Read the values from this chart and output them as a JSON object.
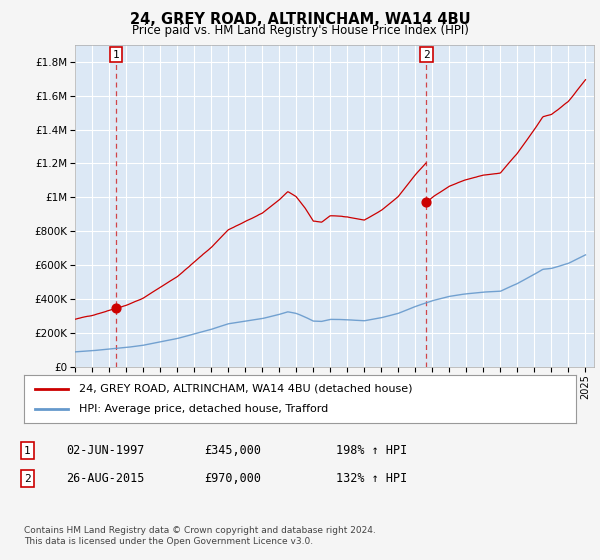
{
  "title": "24, GREY ROAD, ALTRINCHAM, WA14 4BU",
  "subtitle": "Price paid vs. HM Land Registry's House Price Index (HPI)",
  "ylabel_ticks": [
    "£0",
    "£200K",
    "£400K",
    "£600K",
    "£800K",
    "£1M",
    "£1.2M",
    "£1.4M",
    "£1.6M",
    "£1.8M"
  ],
  "ytick_values": [
    0,
    200000,
    400000,
    600000,
    800000,
    1000000,
    1200000,
    1400000,
    1600000,
    1800000
  ],
  "ylim": [
    0,
    1900000
  ],
  "xlim_start": 1995.0,
  "xlim_end": 2025.5,
  "point1_x": 1997.42,
  "point1_y": 345000,
  "point1_label": "1",
  "point2_x": 2015.65,
  "point2_y": 970000,
  "point2_label": "2",
  "sale1_date": "02-JUN-1997",
  "sale1_price": "£345,000",
  "sale1_hpi": "198% ↑ HPI",
  "sale2_date": "26-AUG-2015",
  "sale2_price": "£970,000",
  "sale2_hpi": "132% ↑ HPI",
  "legend_line1": "24, GREY ROAD, ALTRINCHAM, WA14 4BU (detached house)",
  "legend_line2": "HPI: Average price, detached house, Trafford",
  "footer": "Contains HM Land Registry data © Crown copyright and database right 2024.\nThis data is licensed under the Open Government Licence v3.0.",
  "line_color_red": "#cc0000",
  "line_color_blue": "#6699cc",
  "bg_color": "#dce8f5",
  "grid_color": "#ffffff",
  "fig_bg": "#f5f5f5"
}
